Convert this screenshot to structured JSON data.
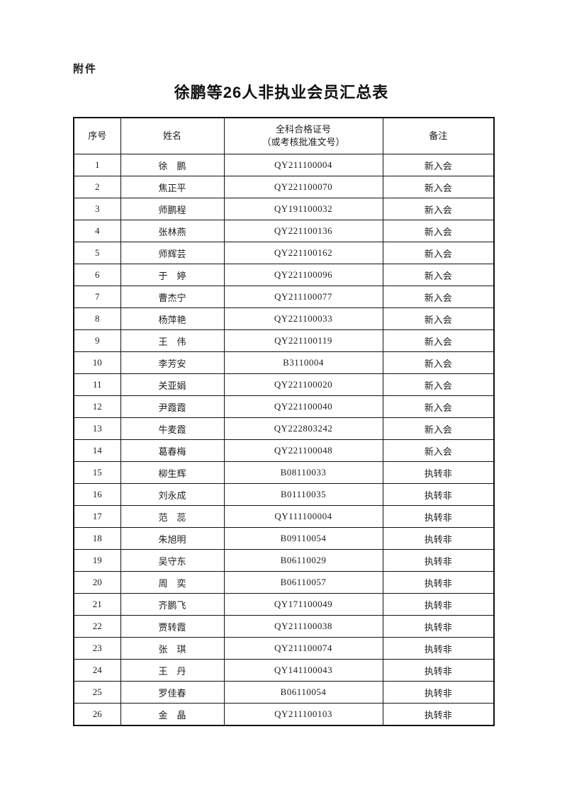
{
  "document": {
    "attachment_label": "附件",
    "title": "徐鹏等26人非执业会员汇总表"
  },
  "table": {
    "headers": {
      "index": "序号",
      "name": "姓名",
      "certificate_line1": "全科合格证号",
      "certificate_line2": "（或考核批准文号）",
      "remark": "备注"
    },
    "rows": [
      {
        "no": "1",
        "name": "徐　鹏",
        "cert": "QY211100004",
        "remark": "新入会"
      },
      {
        "no": "2",
        "name": "焦正平",
        "cert": "QY221100070",
        "remark": "新入会"
      },
      {
        "no": "3",
        "name": "师鹏程",
        "cert": "QY191100032",
        "remark": "新入会"
      },
      {
        "no": "4",
        "name": "张林燕",
        "cert": "QY221100136",
        "remark": "新入会"
      },
      {
        "no": "5",
        "name": "师辉芸",
        "cert": "QY221100162",
        "remark": "新入会"
      },
      {
        "no": "6",
        "name": "于　婷",
        "cert": "QY221100096",
        "remark": "新入会"
      },
      {
        "no": "7",
        "name": "曹杰宁",
        "cert": "QY211100077",
        "remark": "新入会"
      },
      {
        "no": "8",
        "name": "杨萍艳",
        "cert": "QY221100033",
        "remark": "新入会"
      },
      {
        "no": "9",
        "name": "王　伟",
        "cert": "QY221100119",
        "remark": "新入会"
      },
      {
        "no": "10",
        "name": "李芳安",
        "cert": "B3110004",
        "remark": "新入会"
      },
      {
        "no": "11",
        "name": "关亚娟",
        "cert": "QY221100020",
        "remark": "新入会"
      },
      {
        "no": "12",
        "name": "尹霞霞",
        "cert": "QY221100040",
        "remark": "新入会"
      },
      {
        "no": "13",
        "name": "牛麦霞",
        "cert": "QY222803242",
        "remark": "新入会"
      },
      {
        "no": "14",
        "name": "葛春梅",
        "cert": "QY221100048",
        "remark": "新入会"
      },
      {
        "no": "15",
        "name": "柳生辉",
        "cert": "B08110033",
        "remark": "执转非"
      },
      {
        "no": "16",
        "name": "刘永成",
        "cert": "B01110035",
        "remark": "执转非"
      },
      {
        "no": "17",
        "name": "范　蕊",
        "cert": "QY111100004",
        "remark": "执转非"
      },
      {
        "no": "18",
        "name": "朱旭明",
        "cert": "B09110054",
        "remark": "执转非"
      },
      {
        "no": "19",
        "name": "吴守东",
        "cert": "B06110029",
        "remark": "执转非"
      },
      {
        "no": "20",
        "name": "周　奕",
        "cert": "B06110057",
        "remark": "执转非"
      },
      {
        "no": "21",
        "name": "齐鹏飞",
        "cert": "QY171100049",
        "remark": "执转非"
      },
      {
        "no": "22",
        "name": "贾转霞",
        "cert": "QY211100038",
        "remark": "执转非"
      },
      {
        "no": "23",
        "name": "张　琪",
        "cert": "QY211100074",
        "remark": "执转非"
      },
      {
        "no": "24",
        "name": "王　丹",
        "cert": "QY141100043",
        "remark": "执转非"
      },
      {
        "no": "25",
        "name": "罗佳春",
        "cert": "B06110054",
        "remark": "执转非"
      },
      {
        "no": "26",
        "name": "金　晶",
        "cert": "QY211100103",
        "remark": "执转非"
      }
    ]
  },
  "colors": {
    "page_background": "#ffffff",
    "text": "#1d1d1d",
    "border": "#111111"
  }
}
